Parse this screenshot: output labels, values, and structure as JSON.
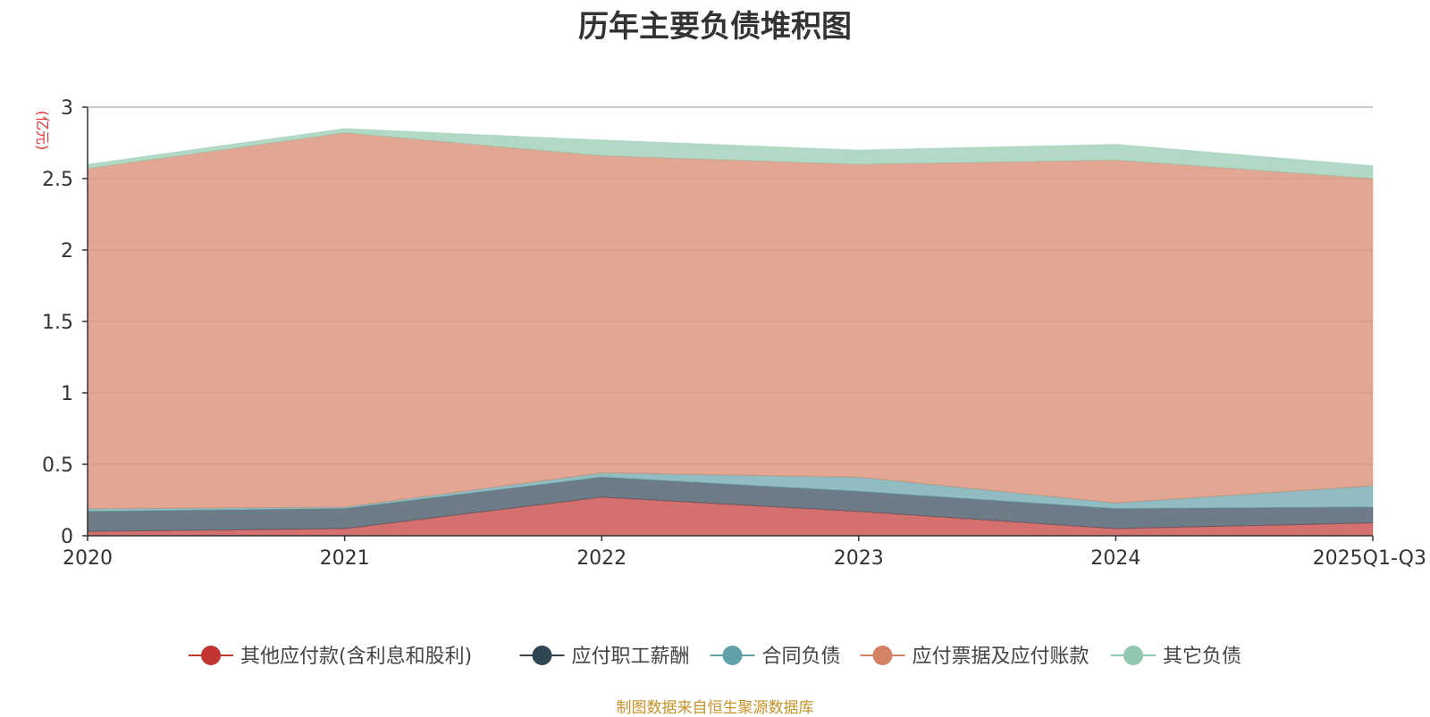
{
  "chart_data": {
    "type": "area",
    "stacked": true,
    "title": "历年主要负债堆积图",
    "unit_label": "(亿元)",
    "categories": [
      "2020",
      "2021",
      "2022",
      "2023",
      "2024",
      "2025Q1-Q3"
    ],
    "ylim": [
      0,
      3
    ],
    "yticks": [
      "0",
      "0.5",
      "1",
      "1.5",
      "2",
      "2.5",
      "3"
    ],
    "ytick_values": [
      0,
      0.5,
      1,
      1.5,
      2,
      2.5,
      3
    ],
    "grid": true,
    "legend_position": "bottom",
    "series": [
      {
        "name": "其他应付款(含利息和股利)",
        "color": "#c23531",
        "values": [
          0.03,
          0.05,
          0.27,
          0.17,
          0.05,
          0.09
        ]
      },
      {
        "name": "应付职工薪酬",
        "color": "#2f4554",
        "values": [
          0.14,
          0.14,
          0.14,
          0.14,
          0.14,
          0.11
        ]
      },
      {
        "name": "合同负债",
        "color": "#61a0a8",
        "values": [
          0.02,
          0.01,
          0.03,
          0.1,
          0.04,
          0.15
        ]
      },
      {
        "name": "应付票据及应付账款",
        "color": "#d48265",
        "values": [
          2.38,
          2.62,
          2.22,
          2.19,
          2.4,
          2.15
        ]
      },
      {
        "name": "其它负债",
        "color": "#91c7ae",
        "values": [
          0.03,
          0.03,
          0.11,
          0.1,
          0.11,
          0.09
        ]
      }
    ]
  },
  "footer": {
    "source": "制图数据来自恒生聚源数据库"
  }
}
